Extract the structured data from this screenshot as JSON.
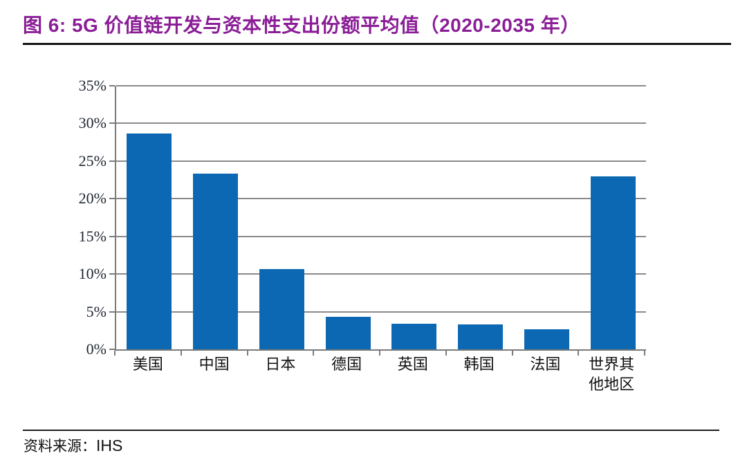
{
  "figure": {
    "title": "图 6: 5G 价值链开发与资本性支出份额平均值（2020-2035 年）",
    "title_color": "#8A1E96"
  },
  "chart_data": {
    "type": "bar",
    "title": "5G 价值链开发与资本性支出份额平均值（2020-2035 年）",
    "categories": [
      "美国",
      "中国",
      "日本",
      "德国",
      "英国",
      "韩国",
      "法国",
      "世界其他地区"
    ],
    "values": [
      28.7,
      23.3,
      10.7,
      4.3,
      3.4,
      3.3,
      2.7,
      23.0
    ],
    "unit": "%",
    "xlabel": "",
    "ylabel": "",
    "ylim": [
      0,
      35
    ],
    "ytick_step": 5,
    "ytick_labels": [
      "0%",
      "5%",
      "10%",
      "15%",
      "20%",
      "25%",
      "30%",
      "35%"
    ],
    "grid": true,
    "legend": "none",
    "bar_color": "#0C68B2",
    "gridline_color": "#8A8A8A",
    "axis_color": "#7A7A7A"
  },
  "footer": {
    "source_label": "资料来源：",
    "source_value": "IHS"
  }
}
